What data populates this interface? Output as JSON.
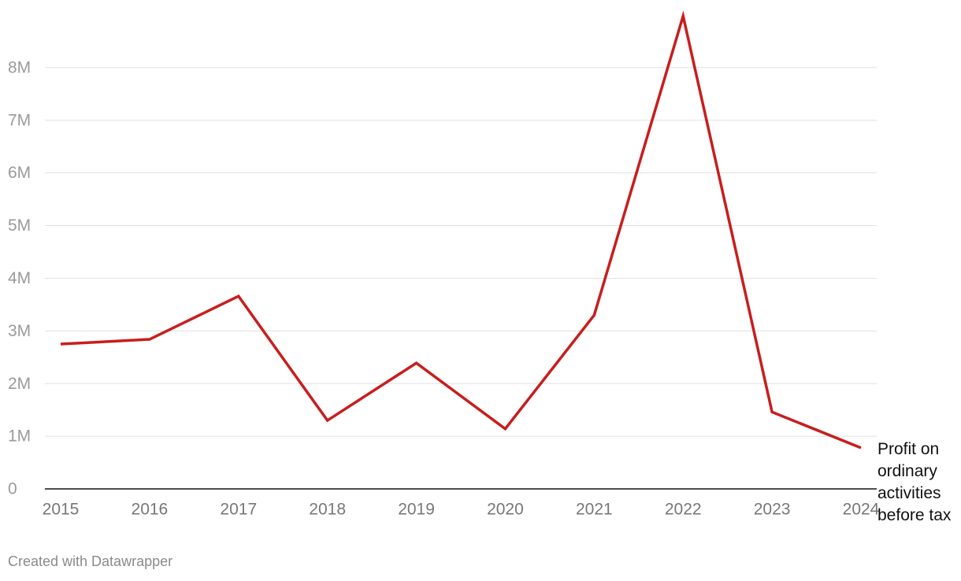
{
  "chart_data": {
    "type": "line",
    "categories": [
      "2015",
      "2016",
      "2017",
      "2018",
      "2019",
      "2020",
      "2021",
      "2022",
      "2023",
      "2024"
    ],
    "series": [
      {
        "name": "Profit on ordinary activities before tax",
        "color": "#c71e1d",
        "values": [
          2750000,
          2840000,
          3660000,
          1300000,
          2390000,
          1140000,
          3300000,
          8980000,
          1460000,
          780000
        ]
      }
    ],
    "ylim": [
      0,
      9000000
    ],
    "yticks": [
      0,
      {
        "value": 1000000,
        "label": "1M"
      },
      {
        "value": 2000000,
        "label": "2M"
      },
      {
        "value": 3000000,
        "label": "3M"
      },
      {
        "value": 4000000,
        "label": "4M"
      },
      {
        "value": 5000000,
        "label": "5M"
      },
      {
        "value": 6000000,
        "label": "6M"
      },
      {
        "value": 7000000,
        "label": "7M"
      },
      {
        "value": 8000000,
        "label": "8M"
      }
    ],
    "grid": true,
    "footer": "Created with Datawrapper"
  }
}
